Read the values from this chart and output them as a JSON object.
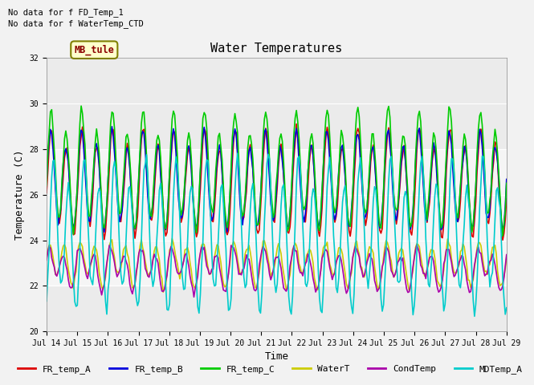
{
  "title": "Water Temperatures",
  "xlabel": "Time",
  "ylabel": "Temperature (C)",
  "ylim": [
    20,
    32
  ],
  "background_color": "#f2f2f2",
  "plot_bg_color": "#ebebeb",
  "text_annotations": [
    "No data for f FD_Temp_1",
    "No data for f WaterTemp_CTD"
  ],
  "mb_tule_label": "MB_tule",
  "x_tick_labels": [
    "Jul 14",
    "Jul 15",
    "Jul 16",
    "Jul 17",
    "Jul 18",
    "Jul 19",
    "Jul 20",
    "Jul 21",
    "Jul 22",
    "Jul 23",
    "Jul 24",
    "Jul 25",
    "Jul 26",
    "Jul 27",
    "Jul 28",
    "Jul 29"
  ],
  "series": {
    "FR_temp_A": {
      "color": "#dd0000",
      "lw": 1.2
    },
    "FR_temp_B": {
      "color": "#0000dd",
      "lw": 1.2
    },
    "FR_temp_C": {
      "color": "#00cc00",
      "lw": 1.2
    },
    "WaterT": {
      "color": "#cccc00",
      "lw": 1.2
    },
    "CondTemp": {
      "color": "#aa00aa",
      "lw": 1.2
    },
    "MDTemp_A": {
      "color": "#00cccc",
      "lw": 1.2
    }
  },
  "legend_fontsize": 8,
  "title_fontsize": 11,
  "tick_fontsize": 7,
  "axis_label_fontsize": 9,
  "shaded_band": [
    22.0,
    28.0
  ],
  "days": 15
}
